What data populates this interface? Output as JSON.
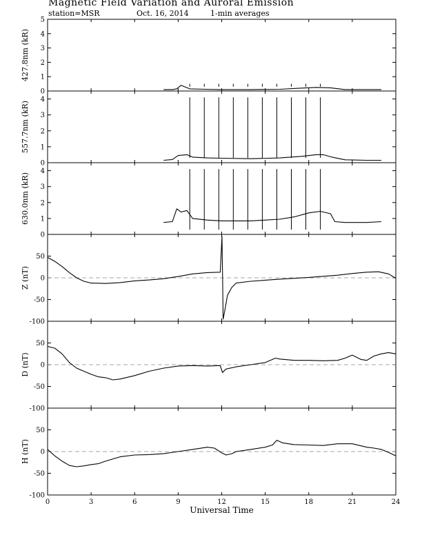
{
  "header": {
    "title": "Magnetic Field Variation and Auroral Emission",
    "station": "station=MSR",
    "date": "Oct. 16, 2014",
    "averaging": "1-min averages"
  },
  "chart_data": [
    {
      "type": "line",
      "id": "p4278",
      "ylabel": "427.8nm (kR)",
      "ylim": [
        0,
        5
      ],
      "yticks": [
        0,
        1,
        2,
        3,
        4,
        5
      ],
      "ytick_labels": [
        "0",
        "1",
        "2",
        "3",
        "4",
        "5"
      ],
      "baseline": null,
      "series": [
        {
          "x": [
            8.0,
            8.6,
            8.9,
            9.2,
            9.8,
            11.0,
            12.0,
            14.0,
            16.0,
            17.5,
            18.5,
            19.5,
            20.5,
            22.0,
            23.0
          ],
          "y": [
            0.1,
            0.1,
            0.15,
            0.4,
            0.15,
            0.12,
            0.1,
            0.1,
            0.12,
            0.2,
            0.25,
            0.22,
            0.1,
            0.1,
            0.1
          ]
        }
      ],
      "spikes": {
        "x": [
          9.8,
          10.8,
          11.8,
          12.8,
          13.8,
          14.8,
          15.8,
          16.8,
          17.8,
          18.8
        ],
        "y": [
          0.5,
          0.5,
          0.5,
          0.5,
          0.5,
          0.5,
          0.5,
          0.5,
          0.5,
          0.5
        ]
      }
    },
    {
      "type": "line",
      "id": "p5577",
      "ylabel": "557.7nm (kR)",
      "ylim": [
        0,
        4.5
      ],
      "yticks": [
        0,
        1,
        2,
        3,
        4
      ],
      "ytick_labels": [
        "0",
        "1",
        "2",
        "3",
        "4"
      ],
      "baseline": null,
      "series": [
        {
          "x": [
            8.0,
            8.6,
            9.0,
            9.6,
            10.0,
            11.0,
            12.0,
            14.0,
            16.0,
            17.5,
            18.5,
            19.0,
            19.6,
            20.5,
            22.0,
            23.0
          ],
          "y": [
            0.15,
            0.2,
            0.45,
            0.5,
            0.35,
            0.3,
            0.28,
            0.25,
            0.3,
            0.4,
            0.5,
            0.5,
            0.35,
            0.18,
            0.15,
            0.15
          ]
        }
      ],
      "spikes": {
        "x": [
          9.8,
          10.8,
          11.8,
          12.8,
          13.8,
          14.8,
          15.8,
          16.8,
          17.8,
          18.8
        ],
        "y": [
          4.1,
          4.1,
          4.1,
          4.1,
          4.1,
          4.1,
          4.1,
          4.1,
          4.1,
          4.1
        ]
      }
    },
    {
      "type": "line",
      "id": "p6300",
      "ylabel": "630.0nm (kR)",
      "ylim": [
        0,
        4.5
      ],
      "yticks": [
        0,
        1,
        2,
        3,
        4
      ],
      "ytick_labels": [
        "0",
        "1",
        "2",
        "3",
        "4"
      ],
      "baseline": null,
      "series": [
        {
          "x": [
            8.0,
            8.6,
            8.9,
            9.2,
            9.6,
            10.0,
            11.0,
            12.0,
            14.0,
            16.0,
            17.0,
            18.0,
            18.8,
            19.5,
            19.8,
            20.5,
            22.0,
            23.0
          ],
          "y": [
            0.75,
            0.8,
            1.6,
            1.4,
            1.5,
            1.0,
            0.9,
            0.85,
            0.85,
            0.95,
            1.1,
            1.35,
            1.45,
            1.3,
            0.8,
            0.75,
            0.75,
            0.8
          ]
        }
      ],
      "spikes": {
        "x": [
          9.8,
          10.8,
          11.8,
          12.8,
          13.8,
          14.8,
          15.8,
          16.8,
          17.8,
          18.8
        ],
        "y": [
          4.1,
          4.1,
          4.1,
          4.1,
          4.1,
          4.1,
          4.1,
          4.1,
          4.1,
          4.1
        ]
      }
    },
    {
      "type": "line",
      "id": "pZ",
      "ylabel": "Z (nT)",
      "ylim": [
        -100,
        100
      ],
      "yticks": [
        -100,
        -50,
        0,
        50
      ],
      "ytick_labels": [
        "-100",
        "-50",
        "0",
        "50"
      ],
      "baseline": 0,
      "series": [
        {
          "x": [
            0,
            0.5,
            1.0,
            1.5,
            2.0,
            2.5,
            3.0,
            4.0,
            5.0,
            6.0,
            7.0,
            8.0,
            9.0,
            10.0,
            11.0,
            11.9,
            12.02,
            12.06,
            12.1,
            12.2,
            12.4,
            12.7,
            13.0,
            14.0,
            16.0,
            18.0,
            20.0,
            21.0,
            22.0,
            22.8,
            23.5,
            24.0
          ],
          "y": [
            47,
            38,
            26,
            12,
            0,
            -8,
            -12,
            -13,
            -11,
            -7,
            -5,
            -2,
            3,
            9,
            12,
            13,
            95,
            2,
            -95,
            -78,
            -40,
            -22,
            -12,
            -8,
            -3,
            1,
            6,
            10,
            13,
            14,
            9,
            -1
          ]
        }
      ],
      "spikes": null
    },
    {
      "type": "line",
      "id": "pD",
      "ylabel": "D (nT)",
      "ylim": [
        -100,
        100
      ],
      "yticks": [
        -100,
        -50,
        0,
        50
      ],
      "ytick_labels": [
        "-100",
        "-50",
        "0",
        "50"
      ],
      "baseline": 0,
      "series": [
        {
          "x": [
            0,
            0.5,
            1.0,
            1.5,
            2.0,
            2.5,
            3.0,
            3.5,
            4.0,
            4.5,
            5.0,
            6.0,
            7.0,
            8.0,
            9.0,
            10.0,
            11.0,
            11.9,
            12.05,
            12.3,
            13.0,
            14.0,
            15.0,
            15.5,
            15.7,
            16.0,
            17.0,
            18.0,
            19.0,
            20.0,
            20.5,
            21.0,
            21.6,
            22.0,
            22.5,
            23.0,
            23.5,
            24.0
          ],
          "y": [
            42,
            38,
            25,
            5,
            -8,
            -15,
            -22,
            -28,
            -30,
            -35,
            -33,
            -25,
            -15,
            -8,
            -3,
            -2,
            -3,
            -2,
            -18,
            -10,
            -5,
            0,
            5,
            12,
            15,
            13,
            10,
            10,
            9,
            10,
            15,
            22,
            12,
            10,
            20,
            25,
            28,
            25
          ]
        }
      ],
      "spikes": null
    },
    {
      "type": "line",
      "id": "pH",
      "ylabel": "H (nT)",
      "ylim": [
        -100,
        100
      ],
      "yticks": [
        -100,
        -50,
        0,
        50
      ],
      "ytick_labels": [
        "-100",
        "-50",
        "0",
        "50"
      ],
      "baseline": 0,
      "series": [
        {
          "x": [
            0,
            0.5,
            1.0,
            1.5,
            2.0,
            2.5,
            3.0,
            3.5,
            4.0,
            5.0,
            6.0,
            7.0,
            8.0,
            9.0,
            10.0,
            11.0,
            11.5,
            12.0,
            12.3,
            12.7,
            13.0,
            14.0,
            15.0,
            15.5,
            15.8,
            16.2,
            17.0,
            18.0,
            19.0,
            20.0,
            21.0,
            22.0,
            22.5,
            23.0,
            23.5,
            24.0
          ],
          "y": [
            5,
            -10,
            -22,
            -32,
            -35,
            -33,
            -30,
            -28,
            -22,
            -12,
            -8,
            -7,
            -5,
            0,
            5,
            10,
            8,
            -3,
            -8,
            -5,
            0,
            5,
            10,
            15,
            26,
            20,
            16,
            15,
            14,
            18,
            18,
            10,
            8,
            5,
            -2,
            -10
          ]
        }
      ],
      "spikes": null
    }
  ],
  "xaxis": {
    "label": "Universal Time",
    "xlim": [
      0,
      24
    ],
    "ticks": [
      0,
      3,
      6,
      9,
      12,
      15,
      18,
      21,
      24
    ],
    "tick_labels": [
      "0",
      "3",
      "6",
      "9",
      "12",
      "15",
      "18",
      "21",
      "24"
    ]
  }
}
